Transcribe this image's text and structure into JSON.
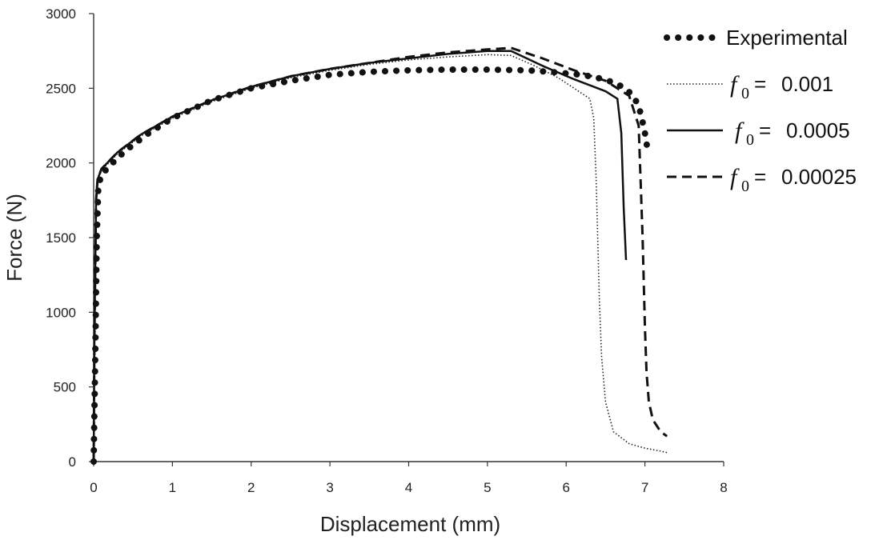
{
  "chart_data": {
    "type": "line",
    "xlabel": "Displacement (mm)",
    "ylabel": "Force (N)",
    "xlim": [
      0,
      8
    ],
    "ylim": [
      0,
      3000
    ],
    "xticks": [
      "0",
      "1",
      "2",
      "3",
      "4",
      "5",
      "6",
      "7",
      "8"
    ],
    "yticks": [
      "0",
      "500",
      "1000",
      "1500",
      "2000",
      "2500",
      "3000"
    ],
    "grid": false,
    "legend_position": "top-right",
    "series": [
      {
        "name": "Experimental",
        "style": "dotted-heavy",
        "color": "#111111",
        "x": [
          0,
          0.02,
          0.04,
          0.06,
          0.1,
          0.2,
          0.4,
          0.7,
          1.0,
          1.5,
          2.0,
          2.5,
          3.0,
          3.5,
          4.0,
          4.5,
          5.0,
          5.5,
          5.8,
          6.0,
          6.2,
          6.4,
          6.6,
          6.75,
          6.85,
          6.92,
          6.96,
          7.0,
          7.03
        ],
        "y": [
          0,
          700,
          1500,
          1850,
          1920,
          1980,
          2080,
          2200,
          2300,
          2420,
          2500,
          2550,
          2590,
          2610,
          2620,
          2625,
          2625,
          2620,
          2610,
          2600,
          2590,
          2570,
          2540,
          2500,
          2450,
          2380,
          2300,
          2200,
          2100
        ]
      },
      {
        "name": "0.001",
        "legend_prefix": "f",
        "legend_subscript": "0",
        "legend_equals": "=",
        "style": "dotted-thin",
        "color": "#111111",
        "x": [
          0,
          0.01,
          0.03,
          0.05,
          0.1,
          0.3,
          0.6,
          1.0,
          1.5,
          2.0,
          2.5,
          3.0,
          3.5,
          4.0,
          4.5,
          5.0,
          5.3,
          5.6,
          5.9,
          6.1,
          6.3,
          6.35,
          6.38,
          6.4,
          6.42,
          6.45,
          6.5,
          6.6,
          6.8,
          7.0,
          7.2,
          7.28
        ],
        "y": [
          0,
          800,
          1700,
          1880,
          1950,
          2060,
          2180,
          2300,
          2410,
          2500,
          2570,
          2620,
          2660,
          2690,
          2710,
          2725,
          2720,
          2650,
          2570,
          2500,
          2430,
          2300,
          1900,
          1500,
          1100,
          700,
          400,
          200,
          120,
          90,
          70,
          60
        ]
      },
      {
        "name": "0.0005",
        "legend_prefix": "f",
        "legend_subscript": "0",
        "legend_equals": "=",
        "style": "solid",
        "color": "#111111",
        "x": [
          0,
          0.01,
          0.03,
          0.05,
          0.1,
          0.3,
          0.6,
          1.0,
          1.5,
          2.0,
          2.5,
          3.0,
          3.5,
          4.0,
          4.5,
          5.0,
          5.3,
          5.7,
          6.1,
          6.5,
          6.65,
          6.7,
          6.73,
          6.76
        ],
        "y": [
          0,
          850,
          1750,
          1890,
          1960,
          2070,
          2190,
          2310,
          2420,
          2510,
          2580,
          2630,
          2670,
          2700,
          2730,
          2750,
          2750,
          2650,
          2560,
          2480,
          2430,
          2200,
          1700,
          1350
        ]
      },
      {
        "name": "0.00025",
        "legend_prefix": "f",
        "legend_subscript": "0",
        "legend_equals": "=",
        "style": "dashed",
        "color": "#111111",
        "x": [
          0,
          0.01,
          0.03,
          0.05,
          0.1,
          0.3,
          0.6,
          1.0,
          1.5,
          2.0,
          2.5,
          3.0,
          3.5,
          4.0,
          4.5,
          5.0,
          5.3,
          5.7,
          6.1,
          6.5,
          6.8,
          6.92,
          6.97,
          7.0,
          7.02,
          7.05,
          7.1,
          7.2,
          7.28
        ],
        "y": [
          0,
          850,
          1750,
          1890,
          1960,
          2070,
          2190,
          2310,
          2420,
          2510,
          2580,
          2630,
          2670,
          2710,
          2740,
          2760,
          2770,
          2700,
          2620,
          2550,
          2450,
          2250,
          1500,
          900,
          600,
          400,
          280,
          200,
          170
        ]
      }
    ]
  }
}
